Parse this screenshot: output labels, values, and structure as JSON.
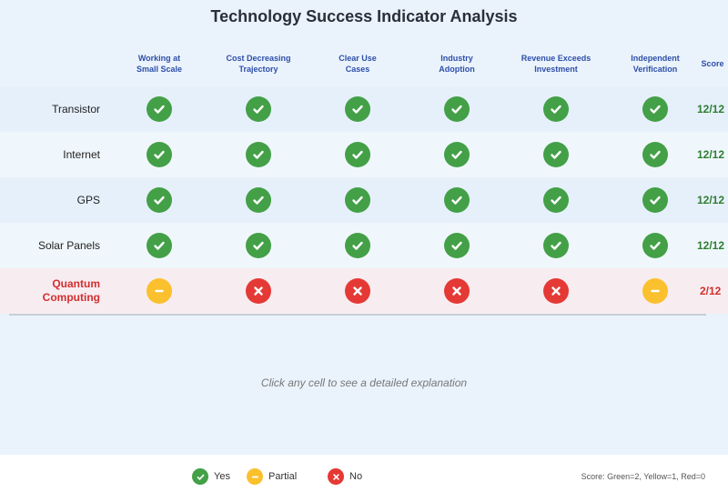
{
  "title": "Technology Success Indicator Analysis",
  "columns": [
    {
      "line1": "Working at",
      "line2": "Small Scale"
    },
    {
      "line1": "Cost Decreasing",
      "line2": "Trajectory"
    },
    {
      "line1": "Clear Use",
      "line2": "Cases"
    },
    {
      "line1": "Industry",
      "line2": "Adoption"
    },
    {
      "line1": "Revenue Exceeds",
      "line2": "Investment"
    },
    {
      "line1": "Independent",
      "line2": "Verification"
    }
  ],
  "score_header": "Score",
  "rows": [
    {
      "label_line1": "Transistor",
      "label_line2": "",
      "cells": [
        "green",
        "green",
        "green",
        "green",
        "green",
        "green"
      ],
      "score": "12/12"
    },
    {
      "label_line1": "Internet",
      "label_line2": "",
      "cells": [
        "green",
        "green",
        "green",
        "green",
        "green",
        "green"
      ],
      "score": "12/12"
    },
    {
      "label_line1": "GPS",
      "label_line2": "",
      "cells": [
        "green",
        "green",
        "green",
        "green",
        "green",
        "green"
      ],
      "score": "12/12"
    },
    {
      "label_line1": "Solar Panels",
      "label_line2": "",
      "cells": [
        "green",
        "green",
        "green",
        "green",
        "green",
        "green"
      ],
      "score": "12/12"
    },
    {
      "label_line1": "Quantum",
      "label_line2": "Computing",
      "cells": [
        "yellow",
        "red",
        "red",
        "red",
        "red",
        "yellow"
      ],
      "score": "2/12"
    }
  ],
  "hint": "Click any cell to see a detailed explanation",
  "legend": {
    "yes": "Yes",
    "partial": "Partial",
    "no": "No"
  },
  "score_note": "Score: Green=2, Yellow=1, Red=0",
  "colors": {
    "green": "#43a047",
    "yellow": "#fbc02d",
    "red": "#e53935",
    "header_blue": "#2e4fa8"
  },
  "icons": {
    "green": "check-icon",
    "yellow": "minus-icon",
    "red": "x-icon"
  }
}
